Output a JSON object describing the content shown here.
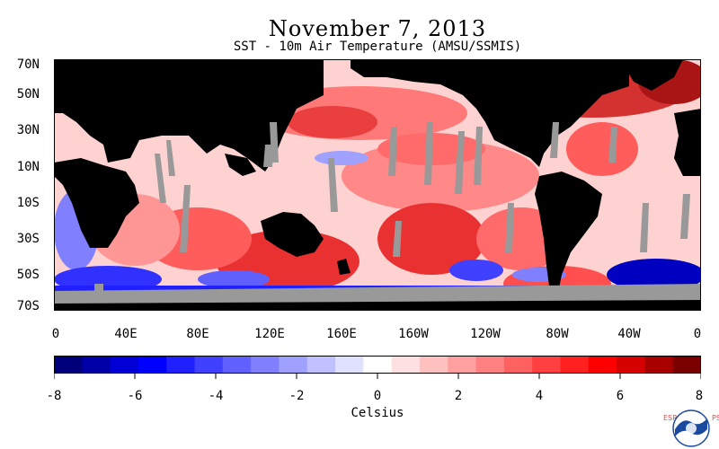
{
  "title": "November 7, 2013",
  "subtitle": "SST - 10m Air Temperature (AMSU/SSMIS)",
  "lat_labels": [
    "70N",
    "50N",
    "30N",
    "10N",
    "10S",
    "30S",
    "50S",
    "70S"
  ],
  "lon_labels": [
    "0",
    "40E",
    "80E",
    "120E",
    "160E",
    "160W",
    "120W",
    "80W",
    "40W",
    "0"
  ],
  "colorbar": {
    "tick_labels": [
      "-8",
      "-6",
      "-4",
      "-2",
      "0",
      "2",
      "4",
      "6",
      "8"
    ],
    "unit": "Celsius",
    "range": [
      -8,
      8
    ],
    "colors": [
      "#00007a",
      "#0000a8",
      "#0000d6",
      "#0000ff",
      "#2020ff",
      "#4040ff",
      "#6060ff",
      "#8080ff",
      "#a0a0ff",
      "#c0c0ff",
      "#e0e0ff",
      "#ffffff",
      "#ffe0e0",
      "#ffc0c0",
      "#ffa0a0",
      "#ff8080",
      "#ff6060",
      "#ff4040",
      "#ff2020",
      "#ff0000",
      "#d60000",
      "#a80000",
      "#7a0000"
    ]
  },
  "map_colors": {
    "land": "#000000",
    "missing": "#999999",
    "ocean_base": "#ffd0d0"
  },
  "logo": {
    "left_text": "ESRL",
    "right_text": "PSD",
    "name": "noaa-logo"
  }
}
